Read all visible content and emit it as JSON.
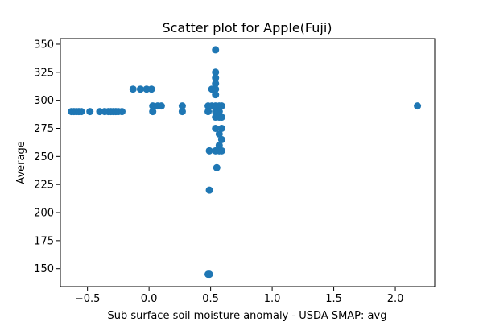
{
  "chart_data": {
    "type": "scatter",
    "title": "Scatter plot for Apple(Fuji)",
    "xlabel": "Sub surface soil moisture anomaly - USDA SMAP: avg",
    "ylabel": "Average",
    "xlim": [
      -0.72,
      2.32
    ],
    "ylim": [
      134,
      355
    ],
    "xticks": [
      -0.5,
      0.0,
      0.5,
      1.0,
      1.5,
      2.0
    ],
    "xtick_labels": [
      "−0.5",
      "0.0",
      "0.5",
      "1.0",
      "1.5",
      "2.0"
    ],
    "yticks": [
      150,
      175,
      200,
      225,
      250,
      275,
      300,
      325,
      350
    ],
    "ytick_labels": [
      "150",
      "175",
      "200",
      "225",
      "250",
      "275",
      "300",
      "325",
      "350"
    ],
    "grid": false,
    "marker_color": "#1f77b4",
    "points": [
      {
        "x": -0.63,
        "y": 290
      },
      {
        "x": -0.61,
        "y": 290
      },
      {
        "x": -0.59,
        "y": 290
      },
      {
        "x": -0.57,
        "y": 290
      },
      {
        "x": -0.55,
        "y": 290
      },
      {
        "x": -0.48,
        "y": 290
      },
      {
        "x": -0.4,
        "y": 290
      },
      {
        "x": -0.36,
        "y": 290
      },
      {
        "x": -0.33,
        "y": 290
      },
      {
        "x": -0.31,
        "y": 290
      },
      {
        "x": -0.29,
        "y": 290
      },
      {
        "x": -0.27,
        "y": 290
      },
      {
        "x": -0.25,
        "y": 290
      },
      {
        "x": -0.22,
        "y": 290
      },
      {
        "x": -0.13,
        "y": 310
      },
      {
        "x": -0.07,
        "y": 310
      },
      {
        "x": -0.02,
        "y": 310
      },
      {
        "x": 0.02,
        "y": 310
      },
      {
        "x": 0.03,
        "y": 295
      },
      {
        "x": 0.03,
        "y": 290
      },
      {
        "x": 0.07,
        "y": 295
      },
      {
        "x": 0.1,
        "y": 295
      },
      {
        "x": 0.27,
        "y": 295
      },
      {
        "x": 0.27,
        "y": 290
      },
      {
        "x": 0.48,
        "y": 295
      },
      {
        "x": 0.48,
        "y": 290
      },
      {
        "x": 0.49,
        "y": 255
      },
      {
        "x": 0.49,
        "y": 220
      },
      {
        "x": 0.48,
        "y": 145
      },
      {
        "x": 0.49,
        "y": 145
      },
      {
        "x": 0.51,
        "y": 310
      },
      {
        "x": 0.51,
        "y": 295
      },
      {
        "x": 0.54,
        "y": 345
      },
      {
        "x": 0.54,
        "y": 325
      },
      {
        "x": 0.54,
        "y": 320
      },
      {
        "x": 0.54,
        "y": 315
      },
      {
        "x": 0.54,
        "y": 310
      },
      {
        "x": 0.54,
        "y": 305
      },
      {
        "x": 0.54,
        "y": 295
      },
      {
        "x": 0.54,
        "y": 290
      },
      {
        "x": 0.54,
        "y": 285
      },
      {
        "x": 0.54,
        "y": 275
      },
      {
        "x": 0.54,
        "y": 255
      },
      {
        "x": 0.55,
        "y": 240
      },
      {
        "x": 0.57,
        "y": 295
      },
      {
        "x": 0.57,
        "y": 290
      },
      {
        "x": 0.57,
        "y": 285
      },
      {
        "x": 0.57,
        "y": 270
      },
      {
        "x": 0.57,
        "y": 260
      },
      {
        "x": 0.57,
        "y": 255
      },
      {
        "x": 0.59,
        "y": 295
      },
      {
        "x": 0.59,
        "y": 285
      },
      {
        "x": 0.59,
        "y": 275
      },
      {
        "x": 0.59,
        "y": 265
      },
      {
        "x": 0.59,
        "y": 255
      },
      {
        "x": 2.18,
        "y": 295
      }
    ]
  }
}
